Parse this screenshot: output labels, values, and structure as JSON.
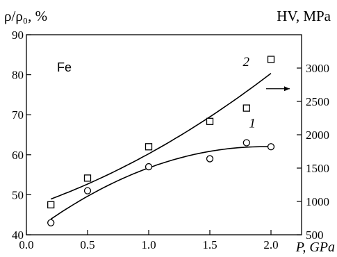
{
  "chart_data": {
    "type": "scatter",
    "annotation": "Fe",
    "y_left_label": "ρ/ρ₀, %",
    "y_right_label": "HV, MPa",
    "x_label": "P, GPa",
    "xlim": [
      0.0,
      2.25
    ],
    "ylim_left": [
      40,
      90
    ],
    "ylim_right": [
      500,
      3500
    ],
    "x_ticks": [
      "0.0",
      "0.5",
      "1.0",
      "1.5",
      "2.0"
    ],
    "y_left_ticks": [
      "40",
      "50",
      "60",
      "70",
      "80",
      "90"
    ],
    "y_right_ticks": [
      "500",
      "1000",
      "1500",
      "2000",
      "2500",
      "3000"
    ],
    "series": [
      {
        "name": "1",
        "axis": "left",
        "marker": "circle",
        "x": [
          0.2,
          0.5,
          1.0,
          1.5,
          1.8,
          2.0
        ],
        "y": [
          43,
          51,
          57,
          59,
          63,
          62
        ]
      },
      {
        "name": "2",
        "axis": "right",
        "marker": "square",
        "arrow": "right",
        "x": [
          0.2,
          0.5,
          1.0,
          1.5,
          1.8,
          2.0
        ],
        "y": [
          950,
          1350,
          1820,
          2200,
          2400,
          3130
        ]
      }
    ]
  }
}
